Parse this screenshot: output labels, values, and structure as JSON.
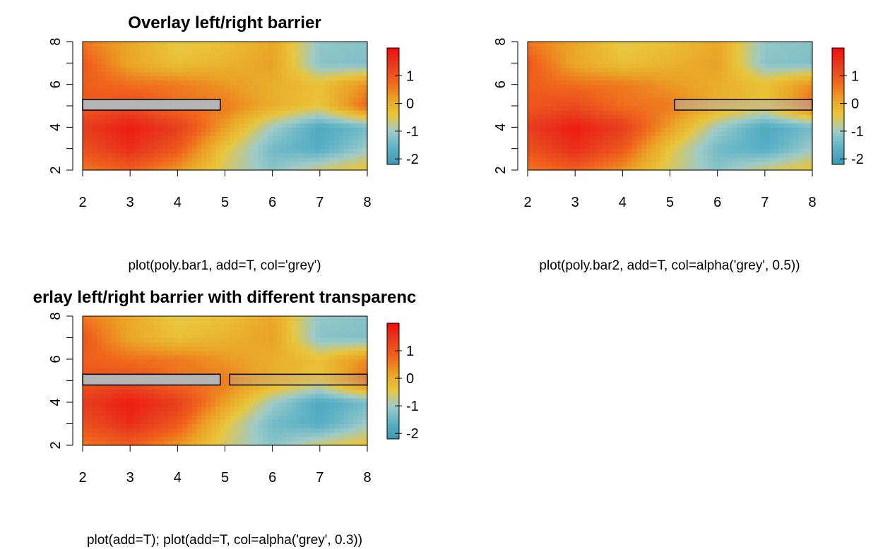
{
  "panels": [
    {
      "title": "Overlay left/right barrier",
      "xlabel": "plot(poly.bar1, add=T, col='grey')",
      "barriers": [
        {
          "x0": 2,
          "x1": 4.9,
          "y0": 4.8,
          "y1": 5.3,
          "fill": "#b4b4b4",
          "fill_opacity": 1.0
        }
      ]
    },
    {
      "title": "",
      "xlabel": "plot(poly.bar2, add=T, col=alpha('grey', 0.5))",
      "barriers": [
        {
          "x0": 5.1,
          "x1": 8,
          "y0": 4.8,
          "y1": 5.3,
          "fill": "#b4b4b4",
          "fill_opacity": 0.5
        }
      ]
    },
    {
      "title": "erlay left/right barrier with different transparenc",
      "xlabel": "plot(add=T); plot(add=T, col=alpha('grey', 0.3))",
      "barriers": [
        {
          "x0": 2,
          "x1": 4.9,
          "y0": 4.8,
          "y1": 5.3,
          "fill": "#b4b4b4",
          "fill_opacity": 1.0
        },
        {
          "x0": 5.1,
          "x1": 8,
          "y0": 4.8,
          "y1": 5.3,
          "fill": "#b4b4b4",
          "fill_opacity": 0.3
        }
      ]
    }
  ],
  "chart_data": {
    "type": "heatmap",
    "xlim": [
      2,
      8
    ],
    "ylim": [
      2,
      8
    ],
    "x_ticks": [
      "2",
      "3",
      "4",
      "5",
      "6",
      "7",
      "8"
    ],
    "y_ticks": [
      "2",
      "4",
      "6",
      "8"
    ],
    "y_minor_ticks": [
      3,
      5,
      7
    ],
    "colorbar": {
      "range": [
        -2.2,
        2.0
      ],
      "ticks": [
        "1",
        "0",
        "-1",
        "-2"
      ],
      "tick_values": [
        1,
        0,
        -1,
        -2
      ],
      "colors": [
        "#3a97b0",
        "#5cb1c6",
        "#9fcbc8",
        "#e9c53a",
        "#eaa125",
        "#f0641c",
        "#e83d1e",
        "#f20d0d"
      ]
    },
    "field_grid": {
      "x": [
        2,
        3,
        4,
        5,
        6,
        7,
        8
      ],
      "y": [
        2,
        3,
        4,
        5,
        6,
        7,
        8
      ],
      "z": [
        [
          0.6,
          0.9,
          0.3,
          -0.6,
          -1.2,
          -0.6,
          -0.3
        ],
        [
          1.1,
          1.6,
          1.0,
          -0.4,
          -1.4,
          -1.7,
          -1.0
        ],
        [
          1.4,
          1.8,
          1.4,
          0.2,
          -1.0,
          -1.8,
          -1.4
        ],
        [
          1.0,
          1.2,
          0.7,
          0.6,
          0.0,
          -0.4,
          0.8
        ],
        [
          0.9,
          0.7,
          0.6,
          0.3,
          0.0,
          -0.3,
          0.4
        ],
        [
          1.0,
          0.1,
          -0.3,
          -0.1,
          0.2,
          -1.2,
          -1.3
        ],
        [
          0.6,
          0.1,
          -0.5,
          -0.3,
          0.1,
          -1.1,
          -1.2
        ]
      ]
    }
  }
}
